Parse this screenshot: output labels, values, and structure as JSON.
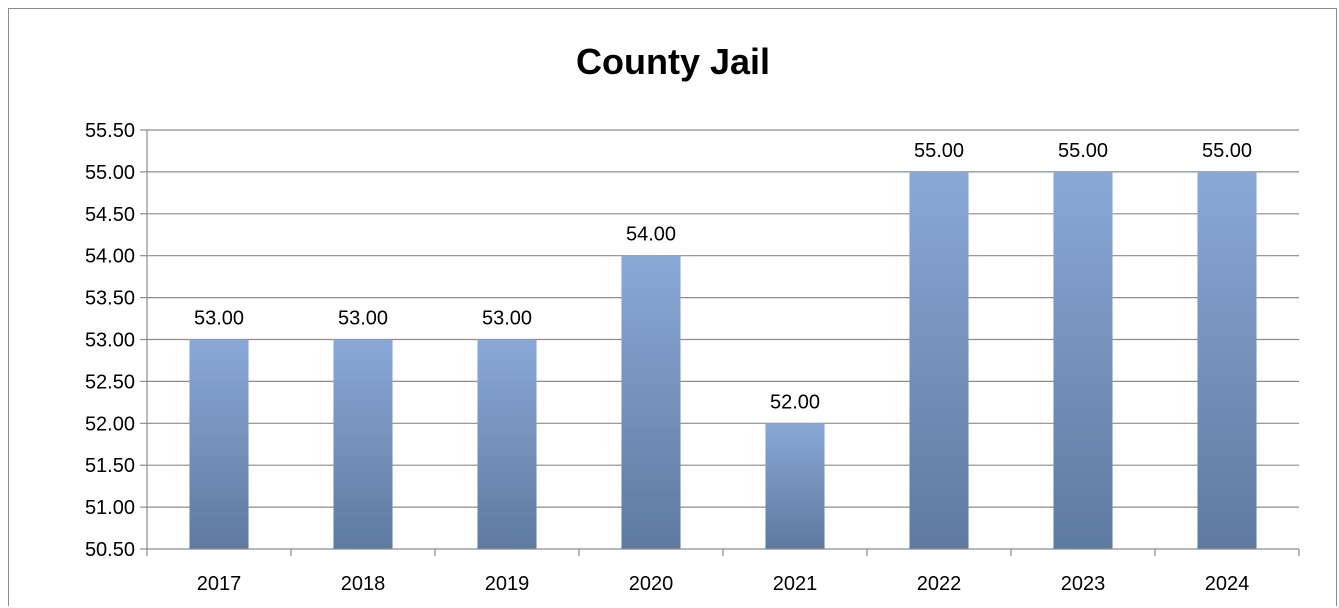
{
  "chart_data": {
    "type": "bar",
    "title": "County Jail",
    "xlabel": "",
    "ylabel": "",
    "categories": [
      "2017",
      "2018",
      "2019",
      "2020",
      "2021",
      "2022",
      "2023",
      "2024"
    ],
    "values": [
      53.0,
      53.0,
      53.0,
      54.0,
      52.0,
      55.0,
      55.0,
      55.0
    ],
    "data_labels": [
      "53.00",
      "53.00",
      "53.00",
      "54.00",
      "52.00",
      "55.00",
      "55.00",
      "55.00"
    ],
    "ylim": [
      50.5,
      55.5
    ],
    "ytick_step": 0.5,
    "ytick_labels": [
      "50.50",
      "51.00",
      "51.50",
      "52.00",
      "52.50",
      "53.00",
      "53.50",
      "54.00",
      "54.50",
      "55.00",
      "55.50"
    ],
    "grid": true,
    "legend": "none",
    "colors": {
      "bar_top": "#8aa8d6",
      "bar_bottom": "#5e7aa1",
      "grid": "#8c8c8c",
      "axis": "#8c8c8c"
    }
  }
}
